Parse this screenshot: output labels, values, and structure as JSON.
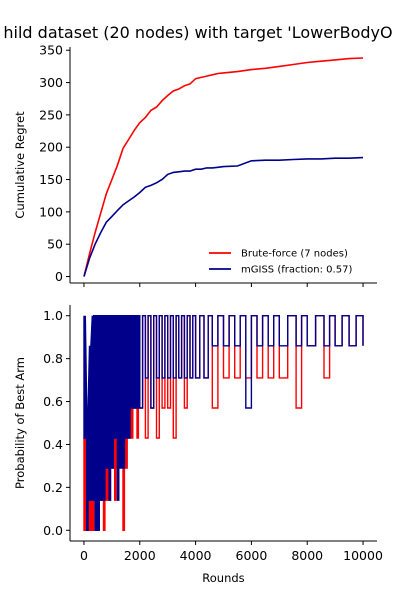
{
  "figure": {
    "title": "hild dataset (20 nodes) with target 'LowerBodyO"
  },
  "colors": {
    "brute_force": "#ff0000",
    "mgiss": "#00008b"
  },
  "chart_data": [
    {
      "type": "line",
      "title": "",
      "xlabel": "",
      "ylabel": "Cumulative Regret",
      "xlim": [
        -500,
        10500
      ],
      "ylim": [
        -10,
        355
      ],
      "xticks": [
        0,
        2000,
        4000,
        6000,
        8000,
        10000
      ],
      "yticks": [
        0,
        50,
        100,
        150,
        200,
        250,
        300,
        350
      ],
      "show_xtick_labels": false,
      "grid": false,
      "legend_position": "lower-right",
      "series": [
        {
          "name": "Brute-force (7 nodes)",
          "color": "#ff0000",
          "x": [
            0,
            200,
            400,
            600,
            800,
            1000,
            1200,
            1400,
            1600,
            1800,
            2000,
            2200,
            2400,
            2600,
            2800,
            3000,
            3200,
            3400,
            3600,
            3800,
            4000,
            4200,
            4400,
            4600,
            4800,
            5000,
            5500,
            6000,
            6500,
            7000,
            7500,
            8000,
            8500,
            9000,
            9500,
            10000
          ],
          "values": [
            0,
            35,
            68,
            98,
            128,
            150,
            172,
            198,
            212,
            226,
            238,
            246,
            257,
            262,
            272,
            280,
            287,
            290,
            295,
            298,
            306,
            308,
            310,
            312,
            314,
            315,
            317,
            320,
            322,
            325,
            328,
            331,
            333,
            335,
            337,
            338
          ]
        },
        {
          "name": "mGISS (fraction: 0.57)",
          "color": "#00008b",
          "x": [
            0,
            200,
            400,
            600,
            800,
            1000,
            1200,
            1400,
            1600,
            1800,
            2000,
            2200,
            2400,
            2600,
            2800,
            3000,
            3200,
            3400,
            3600,
            3800,
            4000,
            4200,
            4400,
            4600,
            4800,
            5000,
            5500,
            6000,
            6500,
            7000,
            7500,
            8000,
            8500,
            9000,
            9500,
            10000
          ],
          "values": [
            0,
            28,
            50,
            68,
            84,
            93,
            102,
            111,
            117,
            123,
            130,
            138,
            141,
            145,
            150,
            158,
            161,
            162,
            163,
            163,
            166,
            166,
            168,
            168,
            169,
            170,
            171,
            179,
            180,
            180,
            181,
            182,
            182,
            183,
            183,
            184
          ]
        }
      ]
    },
    {
      "type": "line",
      "title": "",
      "xlabel": "Rounds",
      "ylabel": "Probability of Best Arm",
      "xlim": [
        -500,
        10500
      ],
      "ylim": [
        -0.05,
        1.05
      ],
      "xticks": [
        0,
        2000,
        4000,
        6000,
        8000,
        10000
      ],
      "yticks": [
        0.0,
        0.2,
        0.4,
        0.6,
        0.8,
        1.0
      ],
      "show_xtick_labels": true,
      "grid": false,
      "series": [
        {
          "name": "",
          "color": "#ff0000",
          "x": [
            0,
            100,
            200,
            300,
            400,
            500,
            600,
            700,
            800,
            900,
            1000,
            1100,
            1200,
            1300,
            1400,
            1500,
            1600,
            1700,
            1800,
            1900,
            2000,
            2200,
            2400,
            2600,
            2800,
            3000,
            3200,
            3400,
            3600,
            3800,
            4000,
            4300,
            4600,
            5000,
            5400,
            5800,
            6200,
            6600,
            7000,
            7600,
            8000,
            8600,
            9000,
            9500,
            10000
          ],
          "high": [
            0.43,
            0.57,
            0.71,
            0.86,
            0.86,
            1.0,
            0.86,
            1.0,
            1.0,
            0.86,
            1.0,
            1.0,
            0.86,
            1.0,
            1.0,
            0.86,
            1.0,
            1.0,
            1.0,
            1.0,
            1.0,
            1.0,
            1.0,
            1.0,
            1.0,
            1.0,
            1.0,
            1.0,
            1.0,
            1.0,
            1.0,
            1.0,
            1.0,
            1.0,
            1.0,
            1.0,
            1.0,
            1.0,
            1.0,
            1.0,
            1.0,
            1.0,
            1.0,
            1.0,
            1.0
          ],
          "low": [
            0.0,
            0.0,
            0.0,
            0.0,
            0.14,
            0.0,
            0.14,
            0.0,
            0.14,
            0.14,
            0.29,
            0.14,
            0.29,
            0.43,
            0.0,
            0.29,
            0.43,
            0.43,
            0.57,
            0.43,
            0.57,
            0.43,
            0.57,
            0.43,
            0.57,
            0.57,
            0.43,
            0.71,
            0.57,
            0.71,
            0.71,
            0.71,
            0.57,
            0.71,
            0.71,
            0.71,
            0.71,
            0.71,
            0.71,
            0.57,
            0.86,
            0.71,
            0.86,
            0.86,
            0.86
          ]
        },
        {
          "name": "",
          "color": "#00008b",
          "x": [
            0,
            100,
            200,
            300,
            400,
            500,
            600,
            700,
            800,
            900,
            1000,
            1100,
            1200,
            1300,
            1400,
            1500,
            1600,
            1700,
            1800,
            1900,
            2000,
            2200,
            2400,
            2600,
            2800,
            3000,
            3200,
            3400,
            3600,
            3800,
            4000,
            4300,
            4600,
            5000,
            5400,
            5800,
            6200,
            6600,
            7000,
            7600,
            8000,
            8600,
            9000,
            9500,
            10000
          ],
          "high": [
            1.0,
            0.57,
            0.86,
            1.0,
            1.0,
            1.0,
            1.0,
            1.0,
            1.0,
            1.0,
            1.0,
            1.0,
            1.0,
            1.0,
            1.0,
            1.0,
            1.0,
            1.0,
            1.0,
            1.0,
            1.0,
            1.0,
            1.0,
            1.0,
            1.0,
            1.0,
            1.0,
            1.0,
            1.0,
            1.0,
            1.0,
            1.0,
            1.0,
            1.0,
            1.0,
            1.0,
            1.0,
            1.0,
            1.0,
            1.0,
            1.0,
            1.0,
            1.0,
            1.0,
            1.0
          ],
          "low": [
            0.43,
            0.0,
            0.14,
            0.14,
            0.0,
            0.0,
            0.14,
            0.14,
            0.29,
            0.14,
            0.29,
            0.43,
            0.14,
            0.29,
            0.29,
            0.43,
            0.43,
            0.57,
            0.57,
            0.57,
            0.57,
            0.71,
            0.57,
            0.71,
            0.71,
            0.71,
            0.71,
            0.71,
            0.71,
            0.71,
            0.71,
            0.71,
            0.86,
            0.86,
            0.86,
            0.57,
            0.86,
            0.86,
            0.86,
            0.86,
            0.86,
            0.86,
            0.86,
            0.86,
            0.86
          ]
        }
      ]
    }
  ]
}
